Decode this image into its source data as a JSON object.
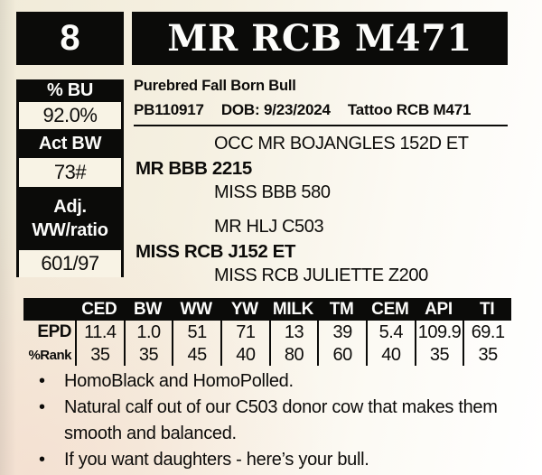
{
  "header": {
    "lot_number": "8",
    "title": "MR RCB M471"
  },
  "sidebar": {
    "rows": [
      {
        "label": "% BU",
        "value": "92.0%"
      },
      {
        "label": "Act BW",
        "value": "73#"
      },
      {
        "label": "Adj. WW/ratio",
        "value": "601/97"
      }
    ]
  },
  "info": {
    "breed_line": "Purebred Fall Born Bull",
    "registration": "PB110917",
    "dob": "DOB: 9/23/2024",
    "tattoo": "Tattoo RCB M471"
  },
  "pedigree": {
    "sire_sire": "OCC MR BOJANGLES 152D ET",
    "sire": "MR BBB 2215",
    "sire_dam": "MISS BBB 580",
    "dam_sire": "MR HLJ C503",
    "dam": "MISS RCB J152 ET",
    "dam_dam": "MISS RCB JULIETTE Z200"
  },
  "epd_table": {
    "columns": [
      "CED",
      "BW",
      "WW",
      "YW",
      "MILK",
      "TM",
      "CEM",
      "API",
      "TI"
    ],
    "rows": [
      {
        "label": "EPD",
        "values": [
          "11.4",
          "1.0",
          "51",
          "71",
          "13",
          "39",
          "5.4",
          "109.9",
          "69.1"
        ]
      },
      {
        "label": "%Rank",
        "values": [
          "35",
          "35",
          "45",
          "40",
          "80",
          "60",
          "40",
          "35",
          "35"
        ]
      }
    ]
  },
  "notes": {
    "bullet_glyph": "•",
    "items": [
      "HomoBlack and HomoPolled.",
      "Natural calf out of our C503 donor cow that makes them smooth and balanced.",
      "If you want daughters - here’s your bull."
    ]
  },
  "colors": {
    "ink": "#0b0b09",
    "paper_cream": "#f1ebd9",
    "cell_background": "#f8f3e5"
  }
}
